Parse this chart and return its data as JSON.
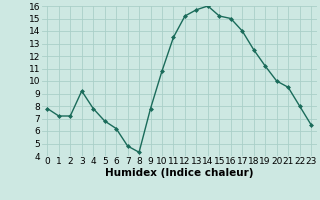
{
  "x": [
    0,
    1,
    2,
    3,
    4,
    5,
    6,
    7,
    8,
    9,
    10,
    11,
    12,
    13,
    14,
    15,
    16,
    17,
    18,
    19,
    20,
    21,
    22,
    23
  ],
  "y": [
    7.8,
    7.2,
    7.2,
    9.2,
    7.8,
    6.8,
    6.2,
    4.8,
    4.3,
    7.8,
    10.8,
    13.5,
    15.2,
    15.7,
    16.0,
    15.2,
    15.0,
    14.0,
    12.5,
    11.2,
    10.0,
    9.5,
    8.0,
    6.5
  ],
  "line_color": "#1a6b5a",
  "marker": "D",
  "marker_size": 2.0,
  "bg_color": "#cde8e2",
  "grid_color": "#aacfc8",
  "xlabel": "Humidex (Indice chaleur)",
  "xlim": [
    -0.5,
    23.5
  ],
  "ylim": [
    4,
    16
  ],
  "yticks": [
    4,
    5,
    6,
    7,
    8,
    9,
    10,
    11,
    12,
    13,
    14,
    15,
    16
  ],
  "xticks": [
    0,
    1,
    2,
    3,
    4,
    5,
    6,
    7,
    8,
    9,
    10,
    11,
    12,
    13,
    14,
    15,
    16,
    17,
    18,
    19,
    20,
    21,
    22,
    23
  ],
  "xlabel_fontsize": 7.5,
  "tick_fontsize": 6.5,
  "line_width": 1.0
}
